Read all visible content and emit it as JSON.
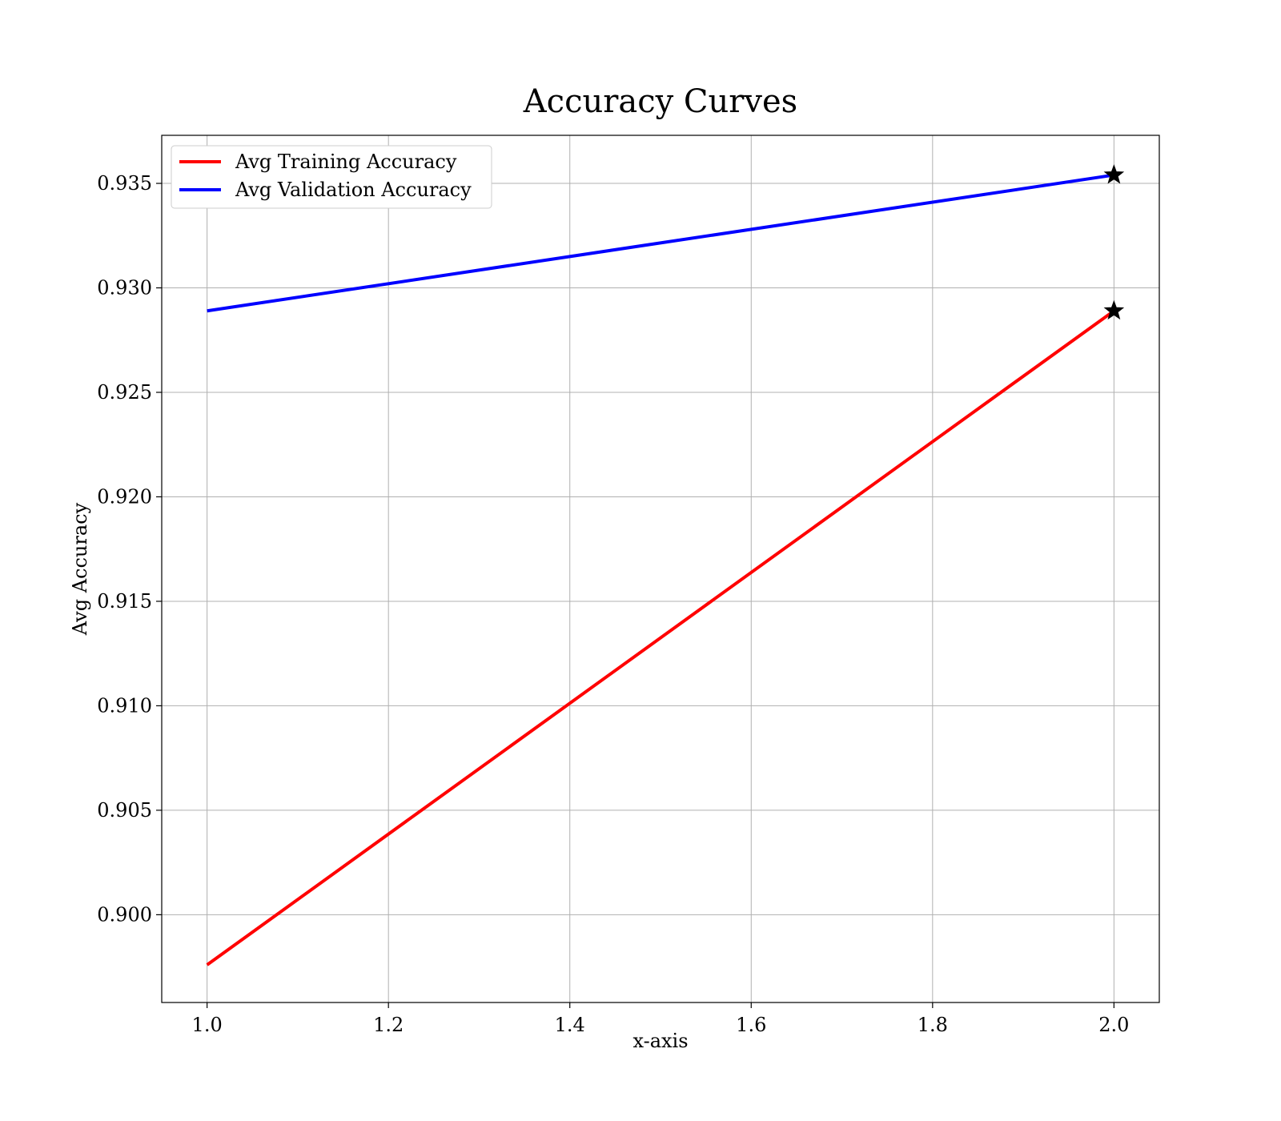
{
  "chart_data": {
    "type": "line",
    "title": "Accuracy Curves",
    "xlabel": "x-axis",
    "ylabel": "Avg Accuracy",
    "xlim": [
      0.95,
      2.05
    ],
    "ylim": [
      0.8958,
      0.9373
    ],
    "x_ticks": [
      1.0,
      1.2,
      1.4,
      1.6,
      1.8,
      2.0
    ],
    "x_tick_labels": [
      "1.0",
      "1.2",
      "1.4",
      "1.6",
      "1.8",
      "2.0"
    ],
    "y_ticks": [
      0.9,
      0.905,
      0.91,
      0.915,
      0.92,
      0.925,
      0.93,
      0.935
    ],
    "y_tick_labels": [
      "0.900",
      "0.905",
      "0.910",
      "0.915",
      "0.920",
      "0.925",
      "0.930",
      "0.935"
    ],
    "grid": true,
    "legend_position": "top-left",
    "x": [
      1.0,
      2.0
    ],
    "series": [
      {
        "name": "Avg Training Accuracy",
        "color": "#ff0000",
        "values": [
          0.8976,
          0.9289
        ],
        "best_marker": "star"
      },
      {
        "name": "Avg Validation Accuracy",
        "color": "#0000ff",
        "values": [
          0.9289,
          0.9354
        ],
        "best_marker": "star"
      }
    ]
  }
}
